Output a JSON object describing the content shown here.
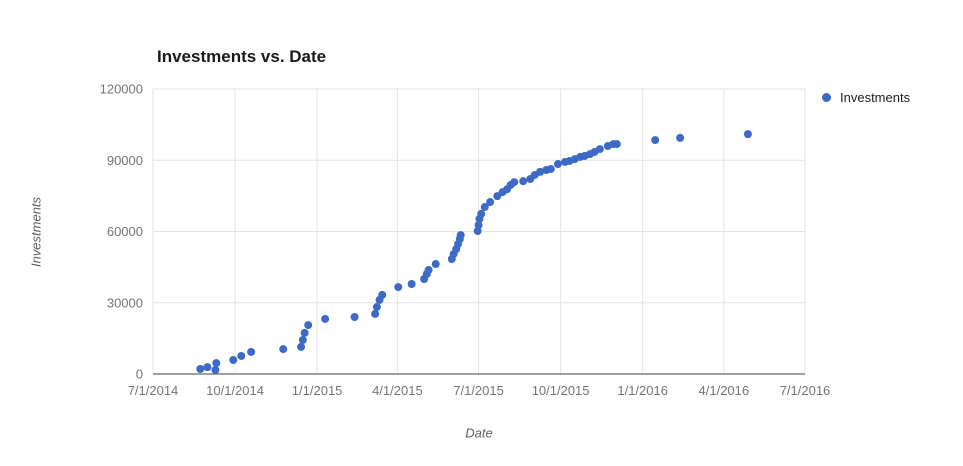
{
  "chart": {
    "title": "Investments vs. Date",
    "x_axis_title": "Date",
    "y_axis_title": "Investments",
    "legend": [
      {
        "label": "Investments",
        "color": "#3c6ac6"
      }
    ]
  },
  "chart_data": {
    "type": "scatter",
    "title": "Investments vs. Date",
    "xlabel": "Date",
    "ylabel": "Investments",
    "xlim": [
      "7/1/2014",
      "7/1/2016"
    ],
    "ylim": [
      0,
      120000
    ],
    "x_ticks": [
      "7/1/2014",
      "10/1/2014",
      "1/1/2015",
      "4/1/2015",
      "7/1/2015",
      "10/1/2015",
      "1/1/2016",
      "4/1/2016",
      "7/1/2016"
    ],
    "y_ticks": [
      0,
      30000,
      60000,
      90000,
      120000
    ],
    "grid": true,
    "legend_position": "right",
    "tick_label_color": "#757575",
    "gridline_color": "#e3e3e3",
    "baseline_color": "#424242",
    "series": [
      {
        "name": "Investments",
        "color": "#3c6ac6",
        "marker": "circle",
        "point_radius": 4,
        "points": [
          [
            "8/23/2014",
            2100
          ],
          [
            "8/31/2014",
            2900
          ],
          [
            "9/9/2014",
            1700
          ],
          [
            "9/10/2014",
            4600
          ],
          [
            "9/29/2014",
            5900
          ],
          [
            "10/8/2014",
            7600
          ],
          [
            "10/19/2014",
            9300
          ],
          [
            "11/24/2014",
            10500
          ],
          [
            "12/14/2014",
            11400
          ],
          [
            "12/16/2014",
            14300
          ],
          [
            "12/18/2014",
            17300
          ],
          [
            "12/22/2014",
            20600
          ],
          [
            "1/10/2015",
            23200
          ],
          [
            "2/12/2015",
            24000
          ],
          [
            "3/7/2015",
            25300
          ],
          [
            "3/9/2015",
            28200
          ],
          [
            "3/12/2015",
            31200
          ],
          [
            "3/15/2015",
            33300
          ],
          [
            "4/2/2015",
            36600
          ],
          [
            "4/17/2015",
            37900
          ],
          [
            "5/1/2015",
            40000
          ],
          [
            "5/4/2015",
            42100
          ],
          [
            "5/6/2015",
            43800
          ],
          [
            "5/14/2015",
            46300
          ],
          [
            "6/1/2015",
            48400
          ],
          [
            "6/3/2015",
            50500
          ],
          [
            "6/6/2015",
            52600
          ],
          [
            "6/8/2015",
            54700
          ],
          [
            "6/10/2015",
            56800
          ],
          [
            "6/11/2015",
            58500
          ],
          [
            "6/30/2015",
            60200
          ],
          [
            "7/1/2015",
            62700
          ],
          [
            "7/2/2015",
            65300
          ],
          [
            "7/4/2015",
            67400
          ],
          [
            "7/8/2015",
            70300
          ],
          [
            "7/14/2015",
            72400
          ],
          [
            "7/22/2015",
            74900
          ],
          [
            "7/28/2015",
            76600
          ],
          [
            "8/2/2015",
            77800
          ],
          [
            "8/6/2015",
            79600
          ],
          [
            "8/10/2015",
            80800
          ],
          [
            "8/20/2015",
            81200
          ],
          [
            "8/28/2015",
            82100
          ],
          [
            "9/2/2015",
            83800
          ],
          [
            "9/8/2015",
            85100
          ],
          [
            "9/15/2015",
            85900
          ],
          [
            "9/20/2015",
            86300
          ],
          [
            "9/28/2015",
            88400
          ],
          [
            "10/6/2015",
            89300
          ],
          [
            "10/11/2015",
            89700
          ],
          [
            "10/17/2015",
            90500
          ],
          [
            "10/23/2015",
            91400
          ],
          [
            "10/28/2015",
            91800
          ],
          [
            "11/3/2015",
            92600
          ],
          [
            "11/8/2015",
            93500
          ],
          [
            "11/14/2015",
            94700
          ],
          [
            "11/23/2015",
            96000
          ],
          [
            "11/29/2015",
            96800
          ],
          [
            "12/3/2015",
            96800
          ],
          [
            "1/15/2016",
            98500
          ],
          [
            "2/12/2016",
            99400
          ],
          [
            "4/28/2016",
            101000
          ]
        ]
      }
    ]
  }
}
